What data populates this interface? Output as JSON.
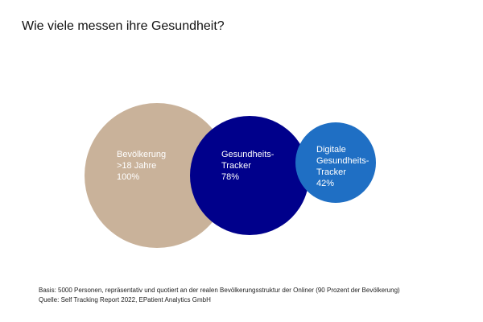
{
  "title": "Wie viele messen ihre Gesundheit?",
  "circles": [
    {
      "lines": [
        "Bevölkerung",
        ">18 Jahre",
        "100%"
      ],
      "value_percent": 100,
      "color": "#c9b29a"
    },
    {
      "lines": [
        "Gesundheits-",
        "Tracker",
        "78%"
      ],
      "value_percent": 78,
      "color": "#00008b"
    },
    {
      "lines": [
        "Digitale",
        "Gesundheits-",
        "Tracker",
        "42%"
      ],
      "value_percent": 42,
      "color": "#1f6fc4"
    }
  ],
  "footnotes": {
    "basis": "Basis: 5000 Personen, repräsentativ und quotiert an der realen Bevölkerungsstruktur der Onliner (90 Prozent der Bevölkerung)",
    "source": "Quelle: Self Tracking Report 2022, EPatient Analytics GmbH"
  }
}
